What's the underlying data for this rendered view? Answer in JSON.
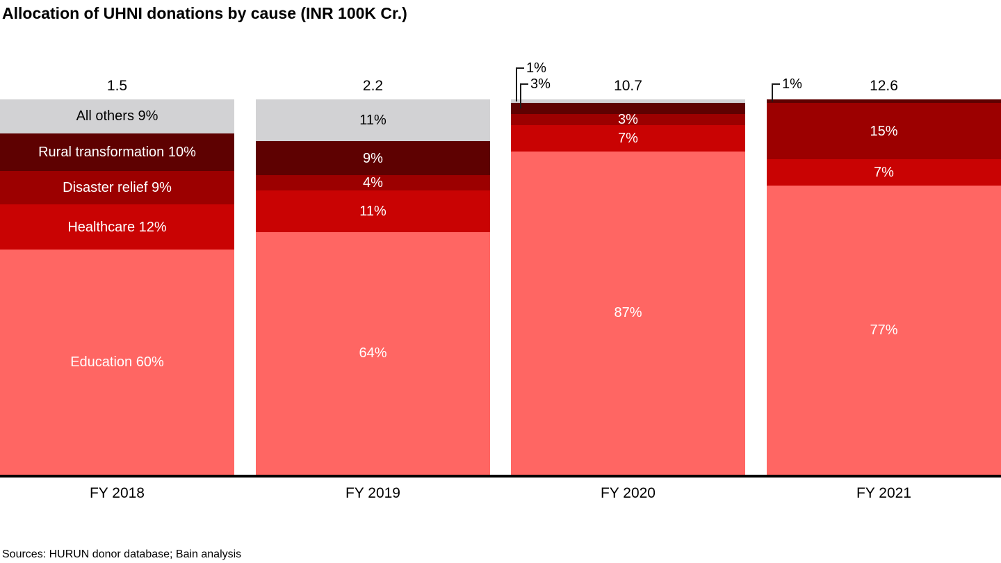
{
  "chart_data": {
    "type": "bar",
    "subtype": "100-percent-stacked-column",
    "title": "Allocation of UHNI donations by cause (INR 100K Cr.)",
    "footnote": "Sources: HURUN donor database; Bain analysis",
    "unit": "INR 100K Cr.",
    "grid": false,
    "legend_position": "none (series labeled inside first bar)",
    "ylim": [
      0,
      100
    ],
    "categories": [
      "FY 2018",
      "FY 2019",
      "FY 2020",
      "FY 2021"
    ],
    "totals": [
      "1.5",
      "2.2",
      "10.7",
      "12.6"
    ],
    "series_order_bottom_to_top": [
      "Education",
      "Healthcare",
      "Disaster relief",
      "Rural transformation",
      "All others"
    ],
    "series": [
      {
        "name": "Education",
        "values": [
          60,
          64,
          87,
          77
        ]
      },
      {
        "name": "Healthcare",
        "values": [
          12,
          11,
          7,
          7
        ]
      },
      {
        "name": "Disaster relief",
        "values": [
          9,
          4,
          3,
          15
        ]
      },
      {
        "name": "Rural transformation",
        "values": [
          10,
          9,
          3,
          1
        ]
      },
      {
        "name": "All others",
        "values": [
          9,
          11,
          1,
          0
        ]
      }
    ],
    "palette": {
      "Education": "#FF6663",
      "Healthcare": "#C90303",
      "Disaster relief": "#9C0000",
      "Rural transformation": "#5E0101",
      "All others": "#D2D2D4"
    },
    "label_text_colors": {
      "All others": "#000000",
      "default": "#FFFFFF"
    },
    "bars": [
      {
        "category": "FY 2018",
        "total": "1.5",
        "segments": [
          {
            "series": "Education",
            "pct": 60,
            "label": "Education 60%",
            "label_mode": "inside"
          },
          {
            "series": "Healthcare",
            "pct": 12,
            "label": "Healthcare 12%",
            "label_mode": "inside"
          },
          {
            "series": "Disaster relief",
            "pct": 9,
            "label": "Disaster relief 9%",
            "label_mode": "inside"
          },
          {
            "series": "Rural transformation",
            "pct": 10,
            "label": "Rural transformation 10%",
            "label_mode": "inside"
          },
          {
            "series": "All others",
            "pct": 9,
            "label": "All others 9%",
            "label_mode": "inside"
          }
        ]
      },
      {
        "category": "FY 2019",
        "total": "2.2",
        "segments": [
          {
            "series": "Education",
            "pct": 64,
            "label": "64%",
            "label_mode": "inside"
          },
          {
            "series": "Healthcare",
            "pct": 11,
            "label": "11%",
            "label_mode": "inside"
          },
          {
            "series": "Disaster relief",
            "pct": 4,
            "label": "4%",
            "label_mode": "inside"
          },
          {
            "series": "Rural transformation",
            "pct": 9,
            "label": "9%",
            "label_mode": "inside"
          },
          {
            "series": "All others",
            "pct": 11,
            "label": "11%",
            "label_mode": "inside"
          }
        ]
      },
      {
        "category": "FY 2020",
        "total": "10.7",
        "segments": [
          {
            "series": "Education",
            "pct": 87,
            "label": "87%",
            "label_mode": "inside"
          },
          {
            "series": "Healthcare",
            "pct": 7,
            "label": "7%",
            "label_mode": "inside"
          },
          {
            "series": "Disaster relief",
            "pct": 3,
            "label": "3%",
            "label_mode": "inside"
          },
          {
            "series": "Rural transformation",
            "pct": 3,
            "label": "3%",
            "label_mode": "callout"
          },
          {
            "series": "All others",
            "pct": 1,
            "label": "1%",
            "label_mode": "callout"
          }
        ]
      },
      {
        "category": "FY 2021",
        "total": "12.6",
        "segments": [
          {
            "series": "Education",
            "pct": 77,
            "label": "77%",
            "label_mode": "inside"
          },
          {
            "series": "Healthcare",
            "pct": 7,
            "label": "7%",
            "label_mode": "inside"
          },
          {
            "series": "Disaster relief",
            "pct": 15,
            "label": "15%",
            "label_mode": "inside"
          },
          {
            "series": "Rural transformation",
            "pct": 1,
            "label": "1%",
            "label_mode": "callout"
          }
        ]
      }
    ]
  }
}
